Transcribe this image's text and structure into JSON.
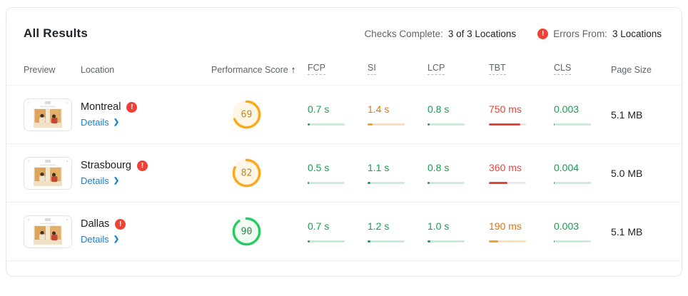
{
  "title": "All Results",
  "status_bar": {
    "checks_label": "Checks Complete:",
    "checks_value": "3 of 3 Locations",
    "errors_label": "Errors From:",
    "errors_value": "3 Locations"
  },
  "icons": {
    "error": "!",
    "chevron_right": "❯",
    "sort_up": "↑"
  },
  "headers": {
    "preview": "Preview",
    "location": "Location",
    "performance_score": "Performance Score",
    "fcp": "FCP",
    "si": "SI",
    "lcp": "LCP",
    "tbt": "TBT",
    "cls": "CLS",
    "page_size": "Page Size"
  },
  "rows": [
    {
      "location": "Montreal",
      "details_label": "Details",
      "score": 69,
      "score_level": "orange",
      "page_size": "5.1 MB",
      "metrics": {
        "fcp": {
          "value": "0.7 s",
          "status": "good",
          "bar_fill": 6
        },
        "si": {
          "value": "1.4 s",
          "status": "average",
          "bar_fill": 13
        },
        "lcp": {
          "value": "0.8 s",
          "status": "good",
          "bar_fill": 5
        },
        "tbt": {
          "value": "750 ms",
          "status": "poor",
          "bar_fill": 85
        },
        "cls": {
          "value": "0.003",
          "status": "good",
          "bar_fill": 2
        }
      }
    },
    {
      "location": "Strasbourg",
      "details_label": "Details",
      "score": 82,
      "score_level": "orange",
      "page_size": "5.0 MB",
      "metrics": {
        "fcp": {
          "value": "0.5 s",
          "status": "good",
          "bar_fill": 3
        },
        "si": {
          "value": "1.1 s",
          "status": "good",
          "bar_fill": 7
        },
        "lcp": {
          "value": "0.8 s",
          "status": "good",
          "bar_fill": 5
        },
        "tbt": {
          "value": "360 ms",
          "status": "poor",
          "bar_fill": 50
        },
        "cls": {
          "value": "0.004",
          "status": "good",
          "bar_fill": 2
        }
      }
    },
    {
      "location": "Dallas",
      "details_label": "Details",
      "score": 90,
      "score_level": "green",
      "page_size": "5.1 MB",
      "metrics": {
        "fcp": {
          "value": "0.7 s",
          "status": "good",
          "bar_fill": 6
        },
        "si": {
          "value": "1.2 s",
          "status": "good",
          "bar_fill": 8
        },
        "lcp": {
          "value": "1.0 s",
          "status": "good",
          "bar_fill": 7
        },
        "tbt": {
          "value": "190 ms",
          "status": "average",
          "bar_fill": 25
        },
        "cls": {
          "value": "0.003",
          "status": "good",
          "bar_fill": 2
        }
      }
    }
  ],
  "status_colors": {
    "good": {
      "text": "#12a24b",
      "fill": "#12a24b",
      "track": "#c9ebd9"
    },
    "average": {
      "text": "#e8710a",
      "fill": "#f5a31b",
      "track": "#fae0b4"
    },
    "poor": {
      "text": "#e8453c",
      "fill": "#ef4036",
      "track": "#e7eaee"
    }
  },
  "gauge_colors": {
    "orange": {
      "ring": "#fba919",
      "bg": "#fef6e7",
      "text": "#d0820a"
    },
    "green": {
      "ring": "#27cb62",
      "bg": "#effbf3",
      "text": "#1e8e4d"
    }
  }
}
